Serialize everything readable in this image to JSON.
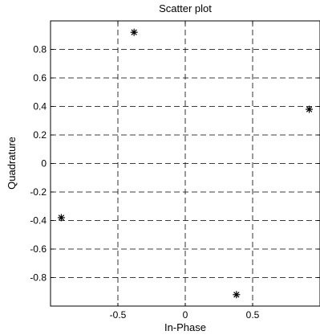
{
  "chart_data": {
    "type": "scatter",
    "title": "Scatter plot",
    "xlabel": "In-Phase",
    "ylabel": "Quadrature",
    "xlim": [
      -1,
      1
    ],
    "ylim": [
      -1,
      1
    ],
    "grid": true,
    "marker": "asterisk",
    "xticks": [
      -0.5,
      0,
      0.5
    ],
    "xtick_labels": [
      "-0.5",
      "0",
      "0.5"
    ],
    "yticks": [
      0.8,
      0.6,
      0.4,
      0.2,
      0,
      -0.2,
      -0.4,
      -0.6,
      -0.8
    ],
    "ytick_labels": [
      "0.8",
      "0.6",
      "0.4",
      "0.2",
      "0",
      "-0.2",
      "-0.4",
      "-0.6",
      "-0.8"
    ],
    "points": [
      {
        "x": -0.38,
        "y": 0.92
      },
      {
        "x": 0.92,
        "y": 0.38
      },
      {
        "x": 0.38,
        "y": -0.92
      },
      {
        "x": -0.92,
        "y": -0.38
      }
    ]
  }
}
